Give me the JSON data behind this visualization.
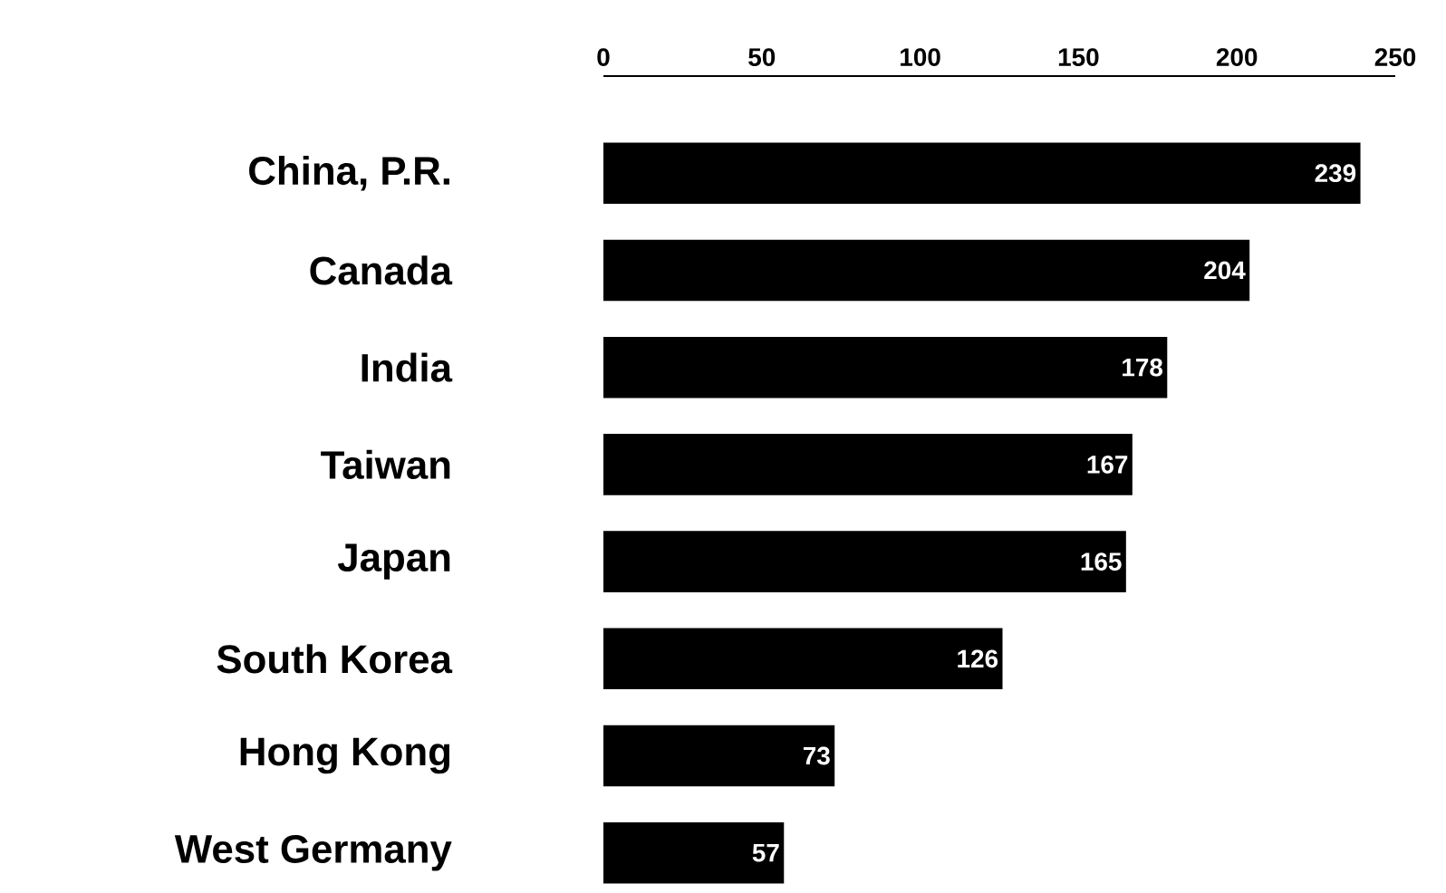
{
  "chart_data": {
    "type": "bar",
    "orientation": "horizontal",
    "categories": [
      "China, P.R.",
      "Canada",
      "India",
      "Taiwan",
      "Japan",
      "South Korea",
      "Hong Kong",
      "West Germany"
    ],
    "values": [
      239,
      204,
      178,
      167,
      165,
      126,
      73,
      57
    ],
    "color": "#000000",
    "xlim": [
      0,
      250
    ],
    "xticks": [
      0,
      50,
      100,
      150,
      200,
      250
    ],
    "data_labels": true,
    "grid": false
  }
}
